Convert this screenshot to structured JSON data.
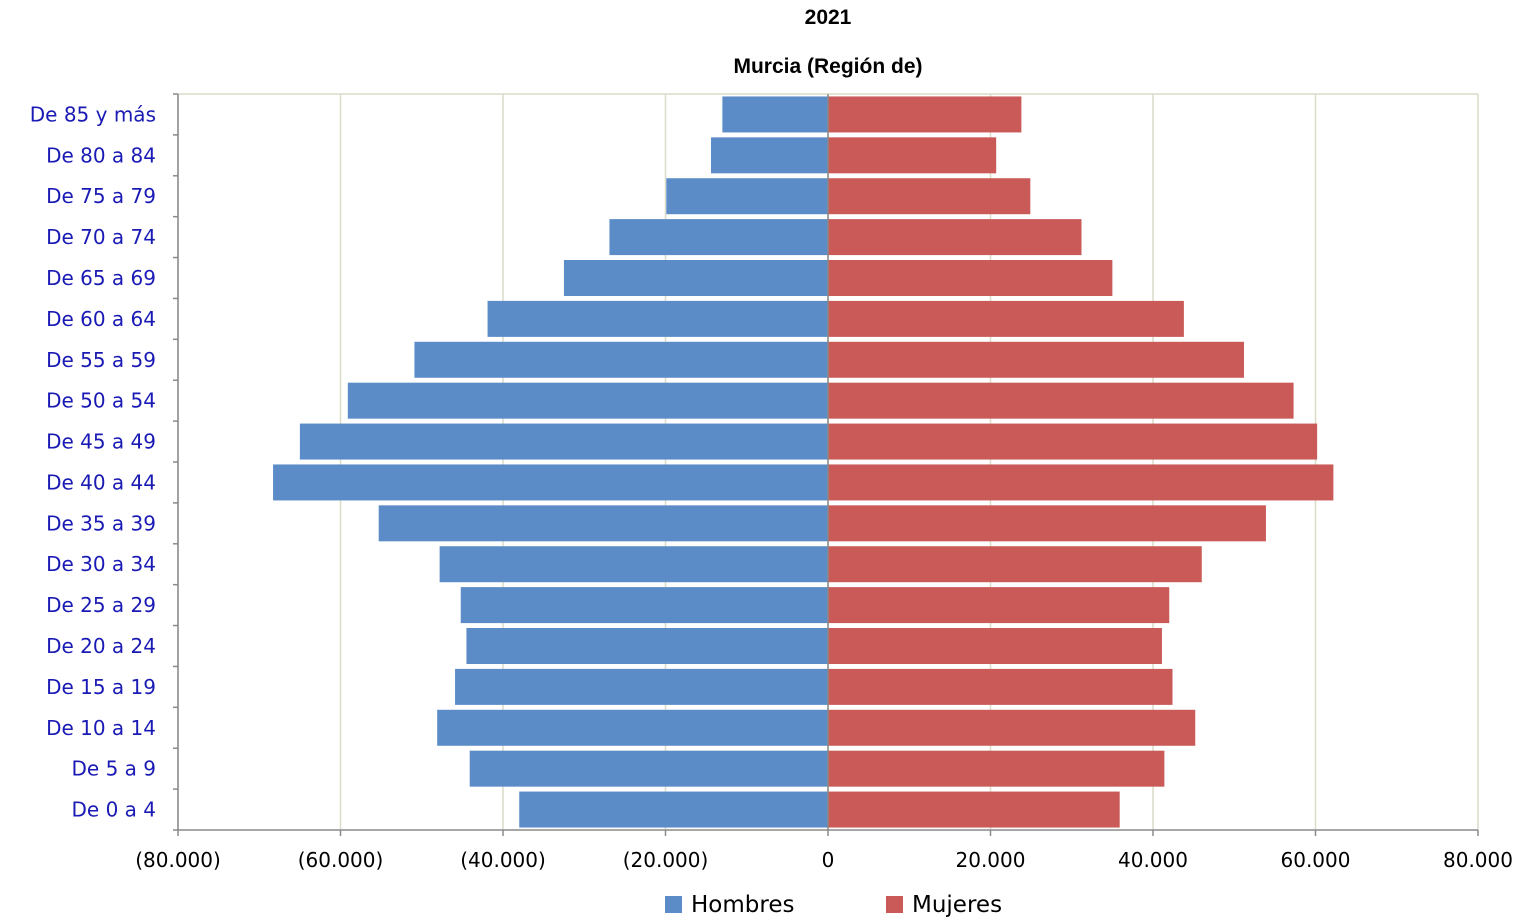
{
  "chart_data": {
    "type": "bar",
    "orientation": "horizontal",
    "title": "2021",
    "subtitle": "Murcia (Región de)",
    "categories": [
      "De 0 a 4",
      "De 5 a 9",
      "De 10 a 14",
      "De 15 a 19",
      "De 20 a 24",
      "De 25 a 29",
      "De 30 a 34",
      "De 35 a 39",
      "De 40 a 44",
      "De 45 a 49",
      "De 50 a 54",
      "De 55 a 59",
      "De 60 a 64",
      "De 65 a 69",
      "De 70 a 74",
      "De 75 a 79",
      "De 80 a 84",
      "De 85 y más"
    ],
    "series": [
      {
        "name": "Hombres",
        "color": "#5b8cc8",
        "values": [
          -38000,
          -44100,
          -48100,
          -45900,
          -44500,
          -45200,
          -47800,
          -55300,
          -68300,
          -65000,
          -59100,
          -50900,
          -41900,
          -32500,
          -26900,
          -19900,
          -14400,
          -13000
        ]
      },
      {
        "name": "Mujeres",
        "color": "#c95a57",
        "values": [
          35900,
          41400,
          45200,
          42400,
          41100,
          42000,
          46000,
          53900,
          62200,
          60200,
          57300,
          51200,
          43800,
          35000,
          31200,
          24900,
          20700,
          23800
        ]
      }
    ],
    "xlim": [
      -80000,
      80000
    ],
    "xticks": [
      "(80.000)",
      "(60.000)",
      "(40.000)",
      "(20.000)",
      "0",
      "20.000",
      "40.000",
      "60.000",
      "80.000"
    ],
    "grid": true,
    "legend_position": "bottom"
  }
}
